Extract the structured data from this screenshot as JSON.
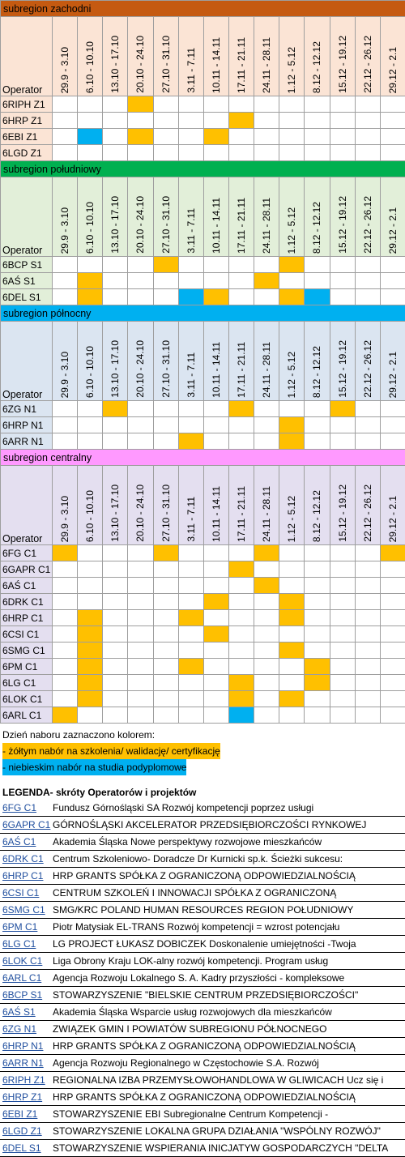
{
  "operator_label": "Operator",
  "periods": [
    "29.9 - 3.10",
    "6.10 - 10.10",
    "13.10 - 17.10",
    "20.10 - 24.10",
    "27.10 - 31.10",
    "3.11 - 7.11",
    "10.11 - 14.11",
    "17.11 - 21.11",
    "24.11 - 28.11",
    "1.12 - 5.12",
    "8.12 - 12.12",
    "15.12 - 19.12",
    "22.12 - 26.12",
    "29.12 - 2.1"
  ],
  "sections": [
    {
      "title": "subregion zachodni",
      "banner_color": "#c55a11",
      "header_color": "#fbe4d5",
      "rows": [
        {
          "name": "6RIPH Z1",
          "cells": [
            "",
            "",
            "",
            "y",
            "",
            "",
            "",
            "",
            "",
            "",
            "",
            "",
            "",
            ""
          ]
        },
        {
          "name": "6HRP Z1",
          "cells": [
            "",
            "",
            "",
            "",
            "",
            "",
            "",
            "y",
            "",
            "",
            "",
            "",
            "",
            ""
          ]
        },
        {
          "name": "6EBI Z1",
          "cells": [
            "",
            "b",
            "",
            "y",
            "",
            "",
            "y",
            "",
            "",
            "",
            "",
            "",
            "",
            ""
          ]
        },
        {
          "name": "6LGD Z1",
          "cells": [
            "",
            "",
            "",
            "",
            "",
            "",
            "",
            "",
            "",
            "",
            "",
            "",
            "",
            ""
          ]
        }
      ]
    },
    {
      "title": "subregion południowy",
      "banner_color": "#00b050",
      "header_color": "#e2efd9",
      "rows": [
        {
          "name": "6BCP S1",
          "cells": [
            "",
            "",
            "",
            "",
            "y",
            "",
            "",
            "",
            "",
            "y",
            "",
            "",
            "",
            ""
          ]
        },
        {
          "name": "6AŚ S1",
          "cells": [
            "",
            "y",
            "",
            "",
            "",
            "",
            "",
            "",
            "y",
            "",
            "",
            "",
            "",
            ""
          ]
        },
        {
          "name": "6DEL S1",
          "cells": [
            "",
            "y",
            "",
            "",
            "",
            "b",
            "y",
            "",
            "",
            "y",
            "b",
            "",
            "",
            ""
          ]
        }
      ]
    },
    {
      "title": "subregion północny",
      "banner_color": "#00b0f0",
      "header_color": "#dbe5f1",
      "rows": [
        {
          "name": "6ZG N1",
          "cells": [
            "",
            "",
            "y",
            "",
            "",
            "",
            "",
            "y",
            "",
            "",
            "",
            "y",
            "",
            ""
          ]
        },
        {
          "name": "6HRP N1",
          "cells": [
            "",
            "",
            "",
            "",
            "",
            "",
            "",
            "",
            "",
            "y",
            "",
            "",
            "",
            ""
          ]
        },
        {
          "name": "6ARR N1",
          "cells": [
            "",
            "",
            "",
            "",
            "",
            "y",
            "",
            "",
            "",
            "y",
            "",
            "",
            "",
            ""
          ]
        }
      ]
    },
    {
      "title": "subregion centralny",
      "banner_color": "#ff99ff",
      "header_color": "#e4dff0",
      "rows": [
        {
          "name": "6FG C1",
          "cells": [
            "y",
            "",
            "",
            "",
            "y",
            "",
            "",
            "",
            "y",
            "",
            "",
            "",
            "",
            "y"
          ]
        },
        {
          "name": "6GAPR C1",
          "cells": [
            "",
            "",
            "",
            "",
            "",
            "",
            "",
            "y",
            "",
            "",
            "",
            "",
            "",
            ""
          ]
        },
        {
          "name": "6AŚ C1",
          "cells": [
            "",
            "",
            "",
            "",
            "",
            "",
            "",
            "",
            "y",
            "",
            "",
            "",
            "",
            ""
          ]
        },
        {
          "name": "6DRK C1",
          "cells": [
            "",
            "",
            "",
            "",
            "",
            "",
            "y",
            "",
            "",
            "y",
            "",
            "",
            "",
            ""
          ]
        },
        {
          "name": "6HRP C1",
          "cells": [
            "",
            "y",
            "",
            "",
            "",
            "y",
            "",
            "",
            "",
            "y",
            "",
            "",
            "",
            ""
          ]
        },
        {
          "name": "6CSI C1",
          "cells": [
            "",
            "y",
            "",
            "",
            "",
            "",
            "y",
            "",
            "",
            "",
            "",
            "",
            "",
            ""
          ]
        },
        {
          "name": "6SMG C1",
          "cells": [
            "",
            "y",
            "",
            "",
            "",
            "",
            "",
            "",
            "",
            "y",
            "",
            "",
            "",
            ""
          ]
        },
        {
          "name": "6PM C1",
          "cells": [
            "",
            "y",
            "",
            "",
            "",
            "y",
            "",
            "",
            "",
            "",
            "y",
            "",
            "",
            ""
          ]
        },
        {
          "name": "6LG C1",
          "cells": [
            "",
            "y",
            "",
            "",
            "",
            "",
            "",
            "y",
            "",
            "",
            "y",
            "",
            "",
            ""
          ]
        },
        {
          "name": "6LOK C1",
          "cells": [
            "",
            "y",
            "",
            "",
            "",
            "",
            "",
            "y",
            "",
            "y",
            "",
            "",
            "",
            ""
          ]
        },
        {
          "name": "6ARL C1",
          "cells": [
            "y",
            "",
            "",
            "",
            "",
            "",
            "",
            "b",
            "",
            "",
            "",
            "",
            "",
            ""
          ]
        }
      ]
    }
  ],
  "legend": {
    "intro": "Dzień naboru zaznaczono kolorem:",
    "yellow": "- żółtym  nabór na szkolenia/ walidację/ certyfikację",
    "blue": "- niebieskim nabór na studia podyplomowe",
    "yellow_color": "#ffc000",
    "blue_color": "#00b0f0"
  },
  "operators_title": "LEGENDA- skróty Operatorów i projektów",
  "operators": [
    {
      "code": "6FG C1",
      "desc": "Fundusz Górnośląski SA Rozwój kompetencji poprzez usługi"
    },
    {
      "code": "6GAPR C1",
      "desc": "GÓRNOŚLĄSKI AKCELERATOR PRZEDSIĘBIORCZOŚCI RYNKOWEJ"
    },
    {
      "code": "6AŚ C1",
      "desc": "Akademia Śląska Nowe perspektywy rozwojowe mieszkańców"
    },
    {
      "code": "6DRK C1",
      "desc": "Centrum Szkoleniowo- Doradcze Dr Kurnicki sp.k. Ścieżki sukcesu:"
    },
    {
      "code": "6HRP C1",
      "desc": "HRP GRANTS SPÓŁKA Z OGRANICZONĄ ODPOWIEDZIALNOŚCIĄ"
    },
    {
      "code": "6CSI C1",
      "desc": "CENTRUM SZKOLEŃ I INNOWACJI SPÓŁKA Z OGRANICZONĄ"
    },
    {
      "code": "6SMG C1",
      "desc": "SMG/KRC POLAND HUMAN RESOURCES REGION POŁUDNIOWY"
    },
    {
      "code": "6PM C1",
      "desc": "Piotr Matysiak EL-TRANS Rozwój kompetencji = wzrost potencjału"
    },
    {
      "code": "6LG C1",
      "desc": "LG PROJECT ŁUKASZ DOBICZEK Doskonalenie umiejętności -Twoja"
    },
    {
      "code": "6LOK C1",
      "desc": "Liga Obrony Kraju LOK-alny rozwój kompetencji. Program usług"
    },
    {
      "code": "6ARL C1",
      "desc": "Agencja Rozwoju Lokalnego S. A. Kadry przyszłości - kompleksowe"
    },
    {
      "code": "6BCP S1",
      "desc": "STOWARZYSZENIE \"BIELSKIE CENTRUM PRZEDSIĘBIORCZOŚCI\""
    },
    {
      "code": "6AŚ S1",
      "desc": "Akademia Śląska Wsparcie usług rozwojowych dla mieszkańców"
    },
    {
      "code": "6ZG N1",
      "desc": "ZWIĄZEK GMIN I POWIATÓW SUBREGIONU PÓŁNOCNEGO"
    },
    {
      "code": "6HRP N1",
      "desc": "HRP GRANTS SPÓŁKA Z OGRANICZONĄ ODPOWIEDZIALNOŚCIĄ"
    },
    {
      "code": "6ARR N1",
      "desc": "Agencja Rozwoju Regionalnego w Częstochowie S.A. Rozwój"
    },
    {
      "code": "6RIPH Z1",
      "desc": "REGIONALNA IZBA PRZEMYSŁOWOHANDLOWA W GLIWICACH Ucz się i"
    },
    {
      "code": "6HRP Z1",
      "desc": "HRP GRANTS SPÓŁKA Z OGRANICZONĄ ODPOWIEDZIALNOŚCIĄ"
    },
    {
      "code": "6EBI Z1",
      "desc": "STOWARZYSZENIE EBI Subregionalne Centrum Kompetencji -"
    },
    {
      "code": "6LGD Z1",
      "desc": "STOWARZYSZENIE LOKALNA GRUPA DZIAŁANIA \"WSPÓLNY ROZWÓJ\""
    },
    {
      "code": "6DEL S1",
      "desc": "STOWARZYSZENIE WSPIERANIA INICJATYW GOSPODARCZYCH \"DELTA"
    }
  ]
}
